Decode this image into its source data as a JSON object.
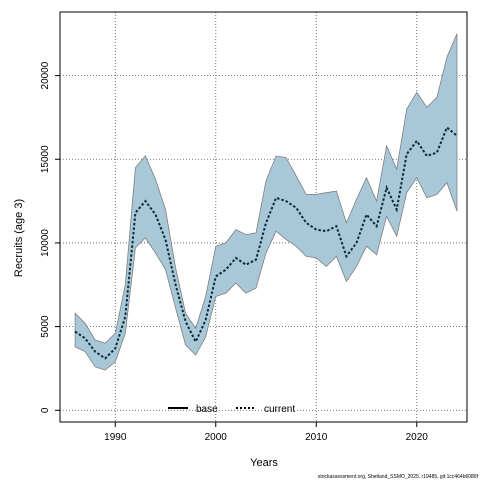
{
  "chart_data": {
    "type": "area",
    "xlabel": "Years",
    "ylabel": "Recruits (age 3)",
    "xlim": [
      1984.5,
      2025
    ],
    "ylim": [
      -700,
      23800
    ],
    "xticks": [
      1990,
      2000,
      2010,
      2020
    ],
    "yticks": [
      0,
      5000,
      10000,
      15000,
      20000
    ],
    "grid": true,
    "legend_position": "bottom-center",
    "legend": [
      {
        "name": "base",
        "style": "solid",
        "color": "#000000"
      },
      {
        "name": "current",
        "style": "dotted",
        "color": "#000000"
      }
    ],
    "band_color": "#a8c8d8",
    "band_edge_color": "#7f7f7f",
    "line_color": "#0b2a3a",
    "x": [
      1986,
      1987,
      1988,
      1989,
      1990,
      1991,
      1992,
      1993,
      1994,
      1995,
      1996,
      1997,
      1998,
      1999,
      2000,
      2001,
      2002,
      2003,
      2004,
      2005,
      2006,
      2007,
      2008,
      2009,
      2010,
      2011,
      2012,
      2013,
      2014,
      2015,
      2016,
      2017,
      2018,
      2019,
      2020,
      2021,
      2022,
      2023,
      2024
    ],
    "series": [
      {
        "name": "current",
        "values": [
          4700,
          4300,
          3500,
          3100,
          3700,
          5600,
          11800,
          12500,
          11700,
          10200,
          7500,
          5300,
          4100,
          5400,
          8000,
          8400,
          9100,
          8700,
          9000,
          11200,
          12700,
          12500,
          12100,
          11200,
          10800,
          10700,
          11000,
          9200,
          10000,
          11700,
          11000,
          13300,
          12000,
          15300,
          16100,
          15200,
          15400,
          16900,
          16400
        ]
      }
    ],
    "band": {
      "upper": [
        5800,
        5200,
        4200,
        4000,
        4600,
        7500,
        14500,
        15200,
        13800,
        12000,
        8500,
        5800,
        4900,
        6800,
        9800,
        10000,
        10800,
        10500,
        10600,
        13700,
        15200,
        15100,
        14000,
        12900,
        12900,
        13000,
        13100,
        11200,
        12600,
        13900,
        12500,
        15800,
        14400,
        18000,
        19000,
        18100,
        18700,
        21100,
        22500
      ],
      "lower": [
        3800,
        3500,
        2600,
        2400,
        2900,
        4600,
        9700,
        10300,
        9400,
        8400,
        6100,
        3900,
        3300,
        4400,
        6800,
        7000,
        7600,
        7000,
        7300,
        9400,
        10700,
        10200,
        9800,
        9200,
        9100,
        8600,
        9200,
        7700,
        8600,
        9800,
        9300,
        11600,
        10400,
        13000,
        13900,
        12700,
        12900,
        13600,
        11900
      ]
    }
  },
  "footer": {
    "note": "stockassessment.org, Shetland_SSMO_2025, r19485, git:1cc464b6086f"
  }
}
